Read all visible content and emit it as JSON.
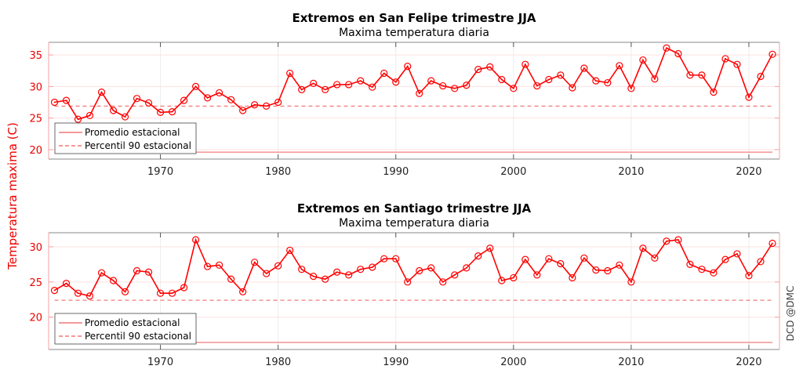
{
  "ylabel": "Temperatura maxima (C)",
  "credit": "DCD @DMC",
  "chart_data": [
    {
      "type": "line",
      "title": "Extremos en San Felipe trimestre JJA",
      "subtitle": "Maxima temperatura diaria",
      "xlabel": "",
      "ylabel": "Temperatura maxima (C)",
      "xlim": [
        1960.5,
        2022.6
      ],
      "ylim": [
        18.5,
        37
      ],
      "xticks": [
        1970,
        1980,
        1990,
        2000,
        2010,
        2020
      ],
      "yticks": [
        20,
        25,
        30,
        35
      ],
      "grid": true,
      "legend": {
        "position": "bottom-left",
        "entries": [
          "Promedio estacional",
          "Percentil 90 estacional"
        ]
      },
      "promedio_estacional": 19.6,
      "percentil_90_estacional": 26.9,
      "x": [
        1961,
        1962,
        1963,
        1964,
        1965,
        1966,
        1967,
        1968,
        1969,
        1970,
        1971,
        1972,
        1973,
        1974,
        1975,
        1976,
        1977,
        1978,
        1979,
        1980,
        1981,
        1982,
        1983,
        1984,
        1985,
        1986,
        1987,
        1988,
        1989,
        1990,
        1991,
        1992,
        1993,
        1994,
        1995,
        1996,
        1997,
        1998,
        1999,
        2000,
        2001,
        2002,
        2003,
        2004,
        2005,
        2006,
        2007,
        2008,
        2009,
        2010,
        2011,
        2012,
        2013,
        2014,
        2015,
        2016,
        2017,
        2018,
        2019,
        2020,
        2021,
        2022
      ],
      "series": [
        {
          "name": "Maxima temperatura diaria",
          "values": [
            27.5,
            27.8,
            24.8,
            25.4,
            29.1,
            26.2,
            25.2,
            28.1,
            27.4,
            25.9,
            26.0,
            27.8,
            30.0,
            28.2,
            29.0,
            27.9,
            26.2,
            27.1,
            26.9,
            27.5,
            32.1,
            29.5,
            30.5,
            29.5,
            30.3,
            30.3,
            30.9,
            29.9,
            32.1,
            30.7,
            33.2,
            28.9,
            30.9,
            30.1,
            29.7,
            30.2,
            32.7,
            33.1,
            31.1,
            29.7,
            33.5,
            30.1,
            31.1,
            31.8,
            29.8,
            32.9,
            30.9,
            30.6,
            33.3,
            29.7,
            34.2,
            31.2,
            36.1,
            35.2,
            31.8,
            31.8,
            29.1,
            34.4,
            33.5,
            28.3,
            31.6,
            35.1
          ]
        }
      ]
    },
    {
      "type": "line",
      "title": "Extremos en Santiago trimestre JJA",
      "subtitle": "Maxima temperatura diaria",
      "xlabel": "",
      "ylabel": "Temperatura maxima (C)",
      "xlim": [
        1960.5,
        2022.6
      ],
      "ylim": [
        15.4,
        32
      ],
      "xticks": [
        1970,
        1980,
        1990,
        2000,
        2010,
        2020
      ],
      "yticks": [
        20,
        25,
        30
      ],
      "grid": true,
      "legend": {
        "position": "bottom-left",
        "entries": [
          "Promedio estacional",
          "Percentil 90 estacional"
        ]
      },
      "promedio_estacional": 16.4,
      "percentil_90_estacional": 22.4,
      "x": [
        1961,
        1962,
        1963,
        1964,
        1965,
        1966,
        1967,
        1968,
        1969,
        1970,
        1971,
        1972,
        1973,
        1974,
        1975,
        1976,
        1977,
        1978,
        1979,
        1980,
        1981,
        1982,
        1983,
        1984,
        1985,
        1986,
        1987,
        1988,
        1989,
        1990,
        1991,
        1992,
        1993,
        1994,
        1995,
        1996,
        1997,
        1998,
        1999,
        2000,
        2001,
        2002,
        2003,
        2004,
        2005,
        2006,
        2007,
        2008,
        2009,
        2010,
        2011,
        2012,
        2013,
        2014,
        2015,
        2016,
        2017,
        2018,
        2019,
        2020,
        2021,
        2022
      ],
      "series": [
        {
          "name": "Maxima temperatura diaria",
          "values": [
            23.8,
            24.8,
            23.4,
            23.0,
            26.3,
            25.2,
            23.6,
            26.6,
            26.4,
            23.4,
            23.4,
            24.2,
            31.0,
            27.2,
            27.4,
            25.4,
            23.6,
            27.8,
            26.2,
            27.3,
            29.5,
            26.8,
            25.8,
            25.4,
            26.4,
            26.0,
            26.8,
            27.1,
            28.3,
            28.3,
            25.0,
            26.6,
            27.0,
            25.0,
            26.0,
            27.0,
            28.7,
            29.8,
            25.2,
            25.6,
            28.2,
            26.0,
            28.3,
            27.6,
            25.6,
            28.4,
            26.7,
            26.6,
            27.4,
            25.0,
            29.8,
            28.4,
            30.8,
            31.0,
            27.5,
            26.8,
            26.3,
            28.2,
            29.0,
            25.9,
            27.9,
            30.5
          ]
        }
      ]
    }
  ]
}
